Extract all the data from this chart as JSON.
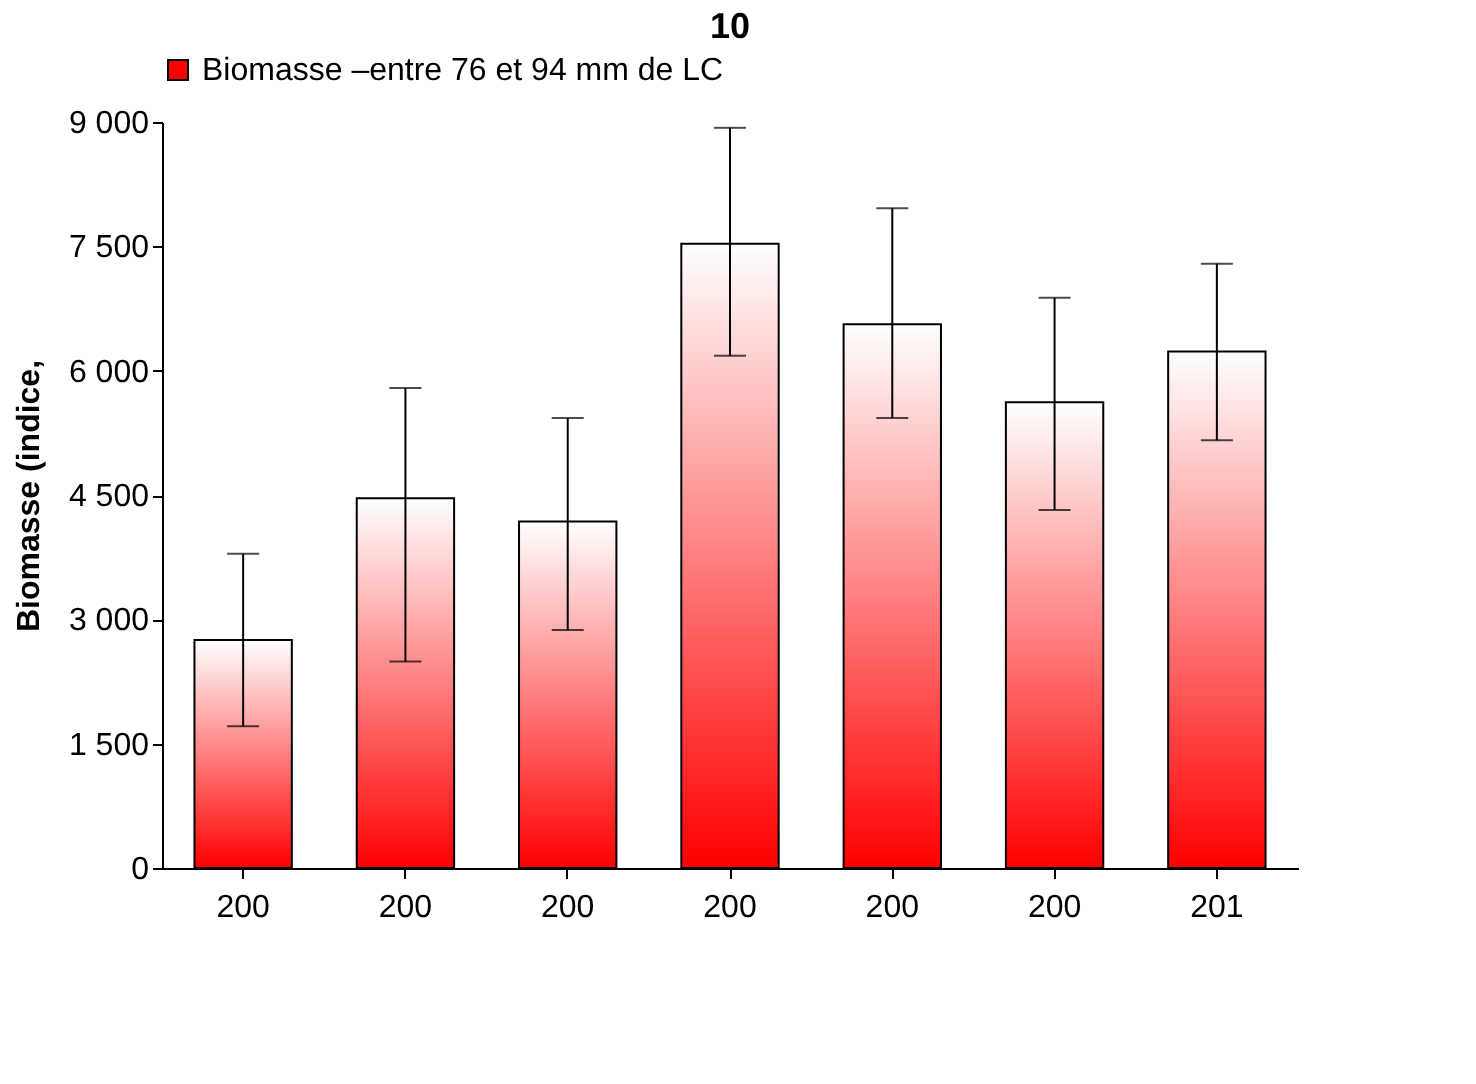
{
  "chart_data": {
    "type": "bar",
    "title": "10",
    "ylabel": "Biomasse (indice,",
    "categories": [
      "200",
      "200",
      "200",
      "200",
      "200",
      "200",
      "201"
    ],
    "series": [
      {
        "name": "Biomasse –entre 76 et 94 mm de LC",
        "color": "#ff0000",
        "values": [
          2750,
          4460,
          4180,
          7530,
          6560,
          5620,
          6230
        ],
        "errors": [
          [
            1710,
            3790
          ],
          [
            2490,
            5790
          ],
          [
            2870,
            5430
          ],
          [
            6180,
            8930
          ],
          [
            5430,
            7960
          ],
          [
            4320,
            6880
          ],
          [
            5160,
            7290
          ]
        ]
      }
    ],
    "ylim": [
      0,
      9000
    ],
    "yticks": [
      0,
      {
        "value": 1500,
        "label": "1 500"
      },
      {
        "value": 3000,
        "label": "3 000"
      },
      {
        "value": 4500,
        "label": "4 500"
      },
      {
        "value": 6000,
        "label": "6 000"
      },
      {
        "value": 7500,
        "label": "7 500"
      },
      {
        "value": 9000,
        "label": "9 000"
      }
    ],
    "grid": false,
    "legend": "top"
  }
}
